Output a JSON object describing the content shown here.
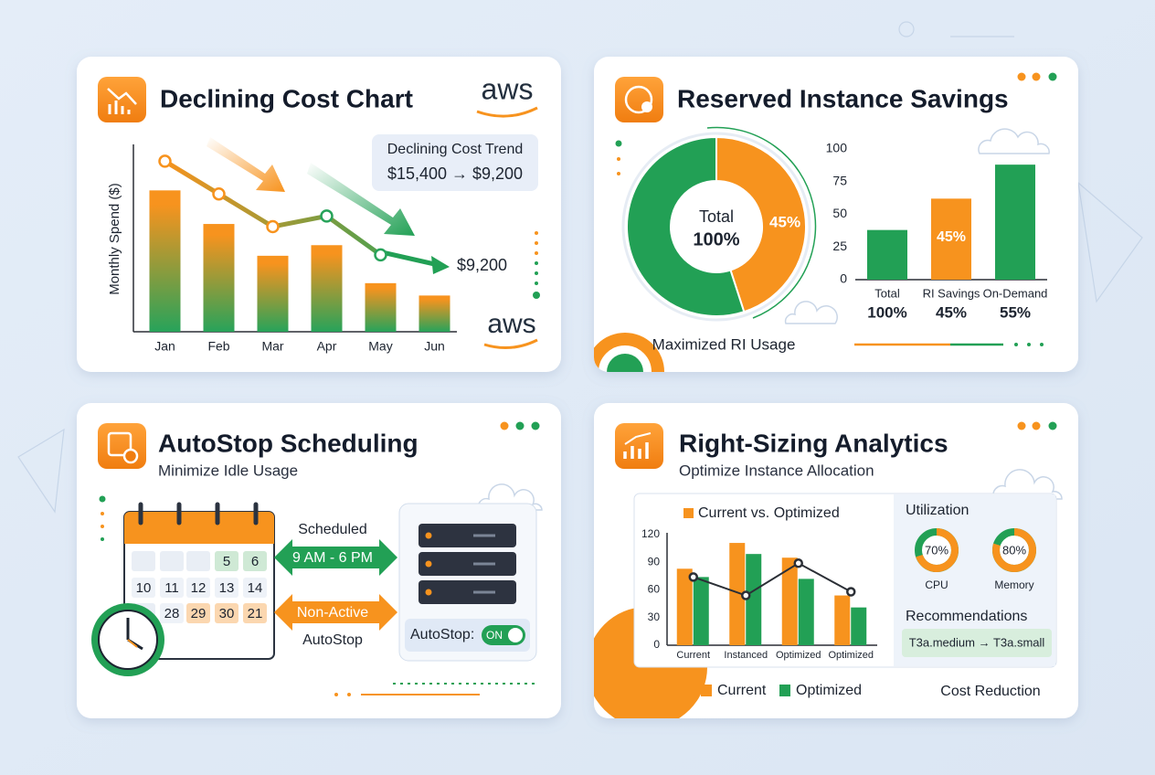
{
  "cards": [
    {
      "title": "Declining Cost Chart",
      "logo": "aws",
      "callout_title": "Declining Cost Trend",
      "callout_text": "$15,400 → $9,200",
      "end_label": "$9,200"
    },
    {
      "title": "Reserved Instance Savings"
    },
    {
      "title": "AutoStop Scheduling",
      "subtitle": "Minimize Idle Usage",
      "calendar": [
        [
          5,
          6
        ],
        [
          10,
          11,
          12,
          13,
          14
        ],
        [
          28,
          29,
          30,
          21
        ]
      ],
      "scheduled": "Scheduled",
      "hours": "9 AM - 6 PM",
      "inactive": "Non-Active",
      "autostop": "AutoStop",
      "toggle_label": "AutoStop:",
      "toggle_state": "ON"
    },
    {
      "title": "Right-Sizing Analytics",
      "subtitle": "Optimize Instance Allocation",
      "recommendations_title": "Recommendations",
      "recommendation": "T3a.medium → T3a.small",
      "footer": "Cost Reduction"
    }
  ],
  "chart_data": [
    {
      "type": "bar",
      "ylabel": "Monthly Spend ($)",
      "categories": [
        "Jan",
        "Feb",
        "Mar",
        "Apr",
        "May",
        "Jun"
      ],
      "ylim": [
        0,
        210
      ],
      "series": [
        {
          "gradient": [
            "#f7931e",
            "#27a35a"
          ],
          "values": [
            160,
            122,
            86,
            98,
            55,
            41
          ]
        },
        {
          "type": "line",
          "gradient": [
            "#f7931e",
            "#27a35a"
          ],
          "values": [
            193,
            156,
            119,
            131,
            87,
            null
          ]
        }
      ]
    },
    {
      "type": "pie",
      "center_label": "Total",
      "center_value": "100%",
      "caption": "Maximized RI Usage",
      "values": [
        45,
        55
      ],
      "value_labels": [
        "45%",
        null
      ],
      "colors": [
        "#f7931e",
        "#22a055"
      ]
    },
    {
      "type": "bar",
      "categories": [
        "Total",
        "RI Savings",
        "On-Demand"
      ],
      "values": [
        38,
        62,
        88
      ],
      "colors": [
        "#22a055",
        "#f7931e",
        "#22a055"
      ],
      "captions": [
        "100%",
        "45%",
        "55%"
      ],
      "annotation": "45%",
      "ylim": [
        0,
        100
      ],
      "yticks": [
        0,
        25,
        50,
        75,
        100
      ]
    },
    {
      "type": "bar",
      "title": "Current vs. Optimized",
      "categories": [
        "Current",
        "Instanced",
        "Optimized",
        "Optimized"
      ],
      "ylim": [
        0,
        120
      ],
      "yticks": [
        0,
        30,
        60,
        90,
        120
      ],
      "series": [
        {
          "name": "Current",
          "color": "#f7931e",
          "values": [
            83,
            111,
            95,
            54
          ]
        },
        {
          "name": "Optimized",
          "color": "#22a055",
          "values": [
            74,
            99,
            72,
            41
          ]
        },
        {
          "type": "line",
          "color": "#2b2f36",
          "values": [
            74,
            54,
            89,
            58
          ]
        }
      ]
    },
    {
      "type": "gauge",
      "title": "Utilization",
      "categories": [
        "CPU",
        "Memory"
      ],
      "values": [
        70,
        80
      ],
      "value_labels": [
        "70%",
        "80%"
      ],
      "colors": [
        "#f7931e",
        "#22a055"
      ]
    }
  ]
}
